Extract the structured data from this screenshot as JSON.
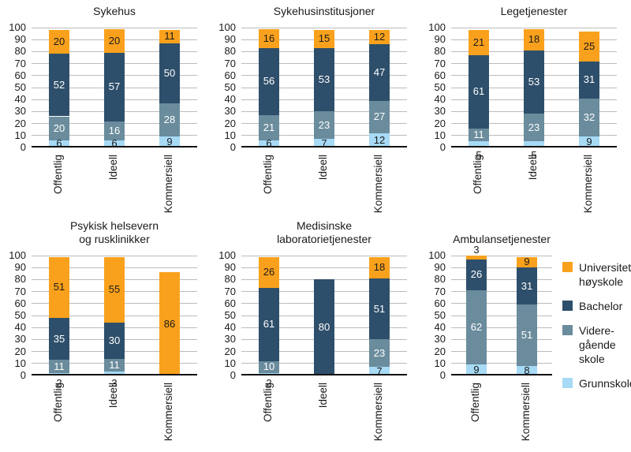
{
  "figure": {
    "background": "#ffffff",
    "y_axis": {
      "min": 0,
      "max": 100,
      "step": 10,
      "ticks": [
        0,
        10,
        20,
        30,
        40,
        50,
        60,
        70,
        80,
        90,
        100
      ]
    }
  },
  "colors": {
    "gridline": "#bcbcbc",
    "axis": "#111111",
    "text": "#1a1a1a",
    "series": {
      "grunnskole": {
        "fill": "#a7daf5",
        "label": "#1a1a1a"
      },
      "videregaende": {
        "fill": "#6a8c9c",
        "label": "#ffffff"
      },
      "bachelor": {
        "fill": "#2e4f6b",
        "label": "#ffffff"
      },
      "universitet": {
        "fill": "#f9a11c",
        "label": "#1a1a1a"
      }
    }
  },
  "legend": {
    "items": [
      {
        "key": "universitet",
        "lines": [
          "Universitet/",
          "høyskole"
        ]
      },
      {
        "key": "bachelor",
        "lines": [
          "Bachelor"
        ]
      },
      {
        "key": "videregaende",
        "lines": [
          "Videre-",
          "gående",
          "skole"
        ]
      },
      {
        "key": "grunnskole",
        "lines": [
          "Grunnskole"
        ]
      }
    ]
  },
  "chart_data": [
    {
      "type": "bar",
      "stacked": true,
      "title": "Sykehus",
      "categories": [
        "Offentlig",
        "Ideell",
        "Kommersiell"
      ],
      "series": [
        {
          "key": "grunnskole",
          "name": "Grunnskole",
          "values": [
            6,
            6,
            9
          ]
        },
        {
          "key": "videregaende",
          "name": "Videregående skole",
          "values": [
            20,
            16,
            28
          ]
        },
        {
          "key": "bachelor",
          "name": "Bachelor",
          "values": [
            52,
            57,
            50
          ]
        },
        {
          "key": "universitet",
          "name": "Universitet/høyskole",
          "values": [
            20,
            20,
            11
          ]
        }
      ],
      "xlabel": "",
      "ylabel": "",
      "ylim": [
        0,
        100
      ],
      "grid": true
    },
    {
      "type": "bar",
      "stacked": true,
      "title": "Sykehusinstitusjoner",
      "categories": [
        "Offentlig",
        "Ideell",
        "Kommersiell"
      ],
      "series": [
        {
          "key": "grunnskole",
          "name": "Grunnskole",
          "values": [
            6,
            7,
            12
          ]
        },
        {
          "key": "videregaende",
          "name": "Videregående skole",
          "values": [
            21,
            23,
            27
          ]
        },
        {
          "key": "bachelor",
          "name": "Bachelor",
          "values": [
            56,
            53,
            47
          ]
        },
        {
          "key": "universitet",
          "name": "Universitet/høyskole",
          "values": [
            16,
            15,
            12
          ]
        }
      ],
      "xlabel": "",
      "ylabel": "",
      "ylim": [
        0,
        100
      ],
      "grid": true
    },
    {
      "type": "bar",
      "stacked": true,
      "title": "Legetjenester",
      "categories": [
        "Offentlig",
        "Ideell",
        "Kommersiell"
      ],
      "series": [
        {
          "key": "grunnskole",
          "name": "Grunnskole",
          "values": [
            5,
            5,
            9
          ]
        },
        {
          "key": "videregaende",
          "name": "Videregående skole",
          "values": [
            11,
            23,
            32
          ]
        },
        {
          "key": "bachelor",
          "name": "Bachelor",
          "values": [
            61,
            53,
            31
          ]
        },
        {
          "key": "universitet",
          "name": "Universitet/høyskole",
          "values": [
            21,
            18,
            25
          ]
        }
      ],
      "xlabel": "",
      "ylabel": "",
      "ylim": [
        0,
        100
      ],
      "grid": true
    },
    {
      "type": "bar",
      "stacked": true,
      "title": "Psykisk helsevern\nog rusklinikker",
      "categories": [
        "Offentlig",
        "Ideell",
        "Kommersiell"
      ],
      "series": [
        {
          "key": "grunnskole",
          "name": "Grunnskole",
          "values": [
            2,
            3,
            0
          ]
        },
        {
          "key": "videregaende",
          "name": "Videregående skole",
          "values": [
            11,
            11,
            0
          ]
        },
        {
          "key": "bachelor",
          "name": "Bachelor",
          "values": [
            35,
            30,
            0
          ]
        },
        {
          "key": "universitet",
          "name": "Universitet/høyskole",
          "values": [
            51,
            55,
            86
          ]
        }
      ],
      "xlabel": "",
      "ylabel": "",
      "ylim": [
        0,
        100
      ],
      "grid": true
    },
    {
      "type": "bar",
      "stacked": true,
      "title": "Medisinske\nlaboratorietjenester",
      "categories": [
        "Offentlig",
        "Ideell",
        "Kommersiell"
      ],
      "series": [
        {
          "key": "grunnskole",
          "name": "Grunnskole",
          "values": [
            2,
            0,
            7
          ]
        },
        {
          "key": "videregaende",
          "name": "Videregående skole",
          "values": [
            10,
            0,
            23
          ]
        },
        {
          "key": "bachelor",
          "name": "Bachelor",
          "values": [
            61,
            80,
            51
          ]
        },
        {
          "key": "universitet",
          "name": "Universitet/høyskole",
          "values": [
            26,
            0,
            18
          ]
        }
      ],
      "xlabel": "",
      "ylabel": "",
      "ylim": [
        0,
        100
      ],
      "grid": true
    },
    {
      "type": "bar",
      "stacked": true,
      "title": "Ambulansetjenester",
      "categories": [
        "Offentlig",
        "Kommersiell"
      ],
      "series": [
        {
          "key": "grunnskole",
          "name": "Grunnskole",
          "values": [
            9,
            8
          ]
        },
        {
          "key": "videregaende",
          "name": "Videregående skole",
          "values": [
            62,
            51
          ]
        },
        {
          "key": "bachelor",
          "name": "Bachelor",
          "values": [
            26,
            31
          ]
        },
        {
          "key": "universitet",
          "name": "Universitet/høyskole",
          "values": [
            3,
            9
          ]
        }
      ],
      "xlabel": "",
      "ylabel": "",
      "ylim": [
        0,
        100
      ],
      "grid": true
    }
  ]
}
